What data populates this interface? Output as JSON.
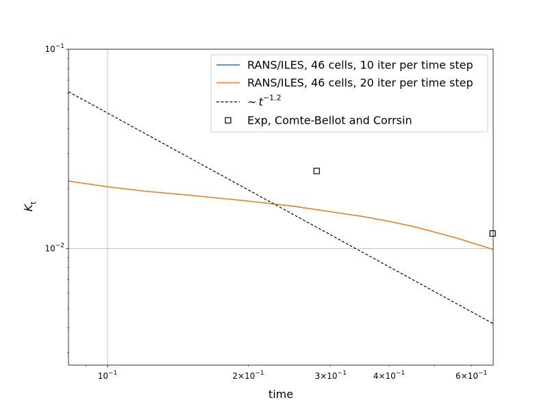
{
  "chart_data": {
    "type": "line",
    "title": "",
    "xlabel": "time",
    "ylabel": "K_t",
    "x_scale": "log",
    "y_scale": "log",
    "xlim": [
      0.0825,
      0.668
    ],
    "ylim": [
      0.0026,
      0.1
    ],
    "grid": "major",
    "legend_position": "top-right",
    "x_ticks": [
      {
        "value": 0.1,
        "mantissa": "",
        "exponent": "−1"
      },
      {
        "value": 0.2,
        "mantissa": "2",
        "exponent": "−1"
      },
      {
        "value": 0.3,
        "mantissa": "3",
        "exponent": "−1"
      },
      {
        "value": 0.4,
        "mantissa": "4",
        "exponent": "−1"
      },
      {
        "value": 0.6,
        "mantissa": "6",
        "exponent": "−1"
      }
    ],
    "y_ticks": [
      {
        "value": 0.1,
        "exponent": "−1"
      },
      {
        "value": 0.01,
        "exponent": "−2"
      }
    ],
    "series": [
      {
        "name": "RANS/ILES, 46 cells, 10 iter per time step",
        "kind": "line",
        "color": "#1f77b4",
        "x": [
          0.0825,
          0.1,
          0.12,
          0.15,
          0.2,
          0.25,
          0.3,
          0.35,
          0.4,
          0.45,
          0.5,
          0.55,
          0.6,
          0.668
        ],
        "y": [
          0.0218,
          0.0204,
          0.0194,
          0.0185,
          0.0173,
          0.0163,
          0.0153,
          0.0145,
          0.0137,
          0.0129,
          0.0121,
          0.0114,
          0.0107,
          0.0099
        ]
      },
      {
        "name": "RANS/ILES, 46 cells, 20 iter per time step",
        "kind": "line",
        "color": "#ff7f0e",
        "x": [
          0.0825,
          0.1,
          0.12,
          0.15,
          0.2,
          0.25,
          0.3,
          0.35,
          0.4,
          0.45,
          0.5,
          0.55,
          0.6,
          0.668
        ],
        "y": [
          0.0218,
          0.0204,
          0.0194,
          0.0185,
          0.0173,
          0.0163,
          0.0153,
          0.0145,
          0.0137,
          0.0129,
          0.0121,
          0.0114,
          0.0107,
          0.0099
        ]
      },
      {
        "name": "~t^-1.2",
        "legend_text": "~",
        "legend_math": "t",
        "legend_exponent": "−1.2",
        "kind": "dashed",
        "color": "#000000",
        "x": [
          0.0825,
          0.668
        ],
        "y": [
          0.0612,
          0.0042
        ]
      },
      {
        "name": "Exp, Comte-Bellot and Corrsin",
        "kind": "marker-square",
        "color": "#000000",
        "x": [
          0.28,
          0.666
        ],
        "y": [
          0.0245,
          0.0119
        ]
      }
    ]
  }
}
